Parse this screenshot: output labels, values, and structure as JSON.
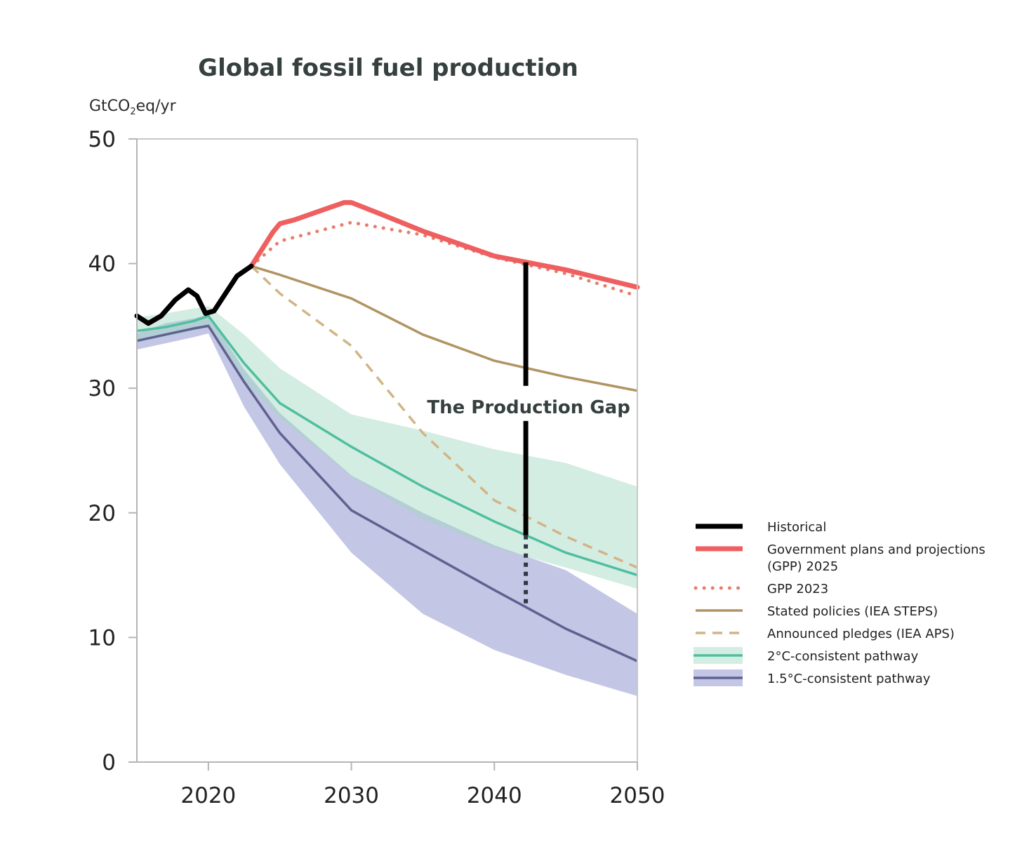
{
  "chart_data": {
    "type": "line",
    "title": "Global fossil fuel production",
    "ylabel_main": "GtCO",
    "ylabel_sub": "2",
    "ylabel_tail": "eq/yr",
    "xlim": [
      2015,
      2050
    ],
    "ylim": [
      0,
      50
    ],
    "x_ticks": [
      2020,
      2030,
      2040,
      2050
    ],
    "y_ticks": [
      0,
      10,
      20,
      30,
      40,
      50
    ],
    "series": [
      {
        "key": "historical",
        "name": "Historical",
        "color": "#000000",
        "style": "solid-thick",
        "points": [
          [
            2015,
            35.8
          ],
          [
            2015.8,
            35.2
          ],
          [
            2016.7,
            35.8
          ],
          [
            2017.7,
            37.1
          ],
          [
            2018.6,
            37.9
          ],
          [
            2019.2,
            37.4
          ],
          [
            2019.8,
            36.0
          ],
          [
            2020.4,
            36.2
          ],
          [
            2021.2,
            37.6
          ],
          [
            2022.0,
            39.0
          ],
          [
            2023.0,
            39.8
          ]
        ]
      },
      {
        "key": "gpp2025",
        "name_lines": [
          "Government plans and projections",
          "(GPP) 2025"
        ],
        "color": "#ef5f5f",
        "style": "solid-thick",
        "points": [
          [
            2023,
            39.8
          ],
          [
            2024.5,
            42.5
          ],
          [
            2025,
            43.2
          ],
          [
            2026,
            43.5
          ],
          [
            2028,
            44.3
          ],
          [
            2029.5,
            44.9
          ],
          [
            2030,
            44.9
          ],
          [
            2032,
            44.0
          ],
          [
            2035,
            42.6
          ],
          [
            2040,
            40.6
          ],
          [
            2045,
            39.5
          ],
          [
            2050,
            38.1
          ]
        ]
      },
      {
        "key": "gpp2023",
        "name": "GPP 2023",
        "color": "#e57f6c",
        "style": "dotted",
        "points": [
          [
            2023,
            39.8
          ],
          [
            2025,
            41.8
          ],
          [
            2030,
            43.3
          ],
          [
            2035,
            42.3
          ],
          [
            2040,
            40.5
          ],
          [
            2045,
            39.2
          ],
          [
            2050,
            37.4
          ]
        ]
      },
      {
        "key": "steps",
        "name": "Stated policies (IEA STEPS)",
        "color": "#b09461",
        "style": "solid",
        "points": [
          [
            2023,
            39.8
          ],
          [
            2025,
            39.1
          ],
          [
            2030,
            37.2
          ],
          [
            2035,
            34.3
          ],
          [
            2040,
            32.2
          ],
          [
            2045,
            30.9
          ],
          [
            2050,
            29.8
          ]
        ]
      },
      {
        "key": "aps",
        "name": "Announced pledges (IEA APS)",
        "color": "#d2b486",
        "style": "dashed",
        "points": [
          [
            2023,
            39.8
          ],
          [
            2025,
            37.6
          ],
          [
            2030,
            33.4
          ],
          [
            2035,
            26.4
          ],
          [
            2040,
            21.0
          ],
          [
            2045,
            18.1
          ],
          [
            2050,
            15.6
          ]
        ]
      },
      {
        "key": "c2",
        "name": "2°C-consistent pathway",
        "color": "#4fbf9f",
        "band_color": "#9fd8c2",
        "style": "solid",
        "points": [
          [
            2015,
            34.6
          ],
          [
            2017,
            34.9
          ],
          [
            2019,
            35.4
          ],
          [
            2020,
            35.8
          ],
          [
            2022.5,
            32.0
          ],
          [
            2025,
            28.8
          ],
          [
            2030,
            25.3
          ],
          [
            2035,
            22.1
          ],
          [
            2040,
            19.3
          ],
          [
            2045,
            16.8
          ],
          [
            2050,
            15.0
          ]
        ],
        "upper": [
          [
            2015,
            35.7
          ],
          [
            2017,
            36.0
          ],
          [
            2019,
            36.4
          ],
          [
            2020,
            36.6
          ],
          [
            2022.5,
            34.3
          ],
          [
            2025,
            31.6
          ],
          [
            2030,
            27.9
          ],
          [
            2035,
            26.6
          ],
          [
            2040,
            25.1
          ],
          [
            2045,
            24.0
          ],
          [
            2050,
            22.1
          ]
        ],
        "lower": [
          [
            2015,
            33.8
          ],
          [
            2017,
            34.1
          ],
          [
            2019,
            34.6
          ],
          [
            2020,
            34.9
          ],
          [
            2022.5,
            30.5
          ],
          [
            2025,
            27.6
          ],
          [
            2030,
            22.9
          ],
          [
            2035,
            19.5
          ],
          [
            2040,
            17.2
          ],
          [
            2045,
            15.6
          ],
          [
            2050,
            13.9
          ]
        ]
      },
      {
        "key": "c15",
        "name": "1.5°C-consistent pathway",
        "color": "#5f6290",
        "band_color": "#9fa3d6",
        "style": "solid",
        "points": [
          [
            2015,
            33.8
          ],
          [
            2017,
            34.3
          ],
          [
            2019,
            34.8
          ],
          [
            2020,
            35.0
          ],
          [
            2022.5,
            30.5
          ],
          [
            2025,
            26.4
          ],
          [
            2030,
            20.2
          ],
          [
            2035,
            17.0
          ],
          [
            2040,
            13.8
          ],
          [
            2045,
            10.7
          ],
          [
            2050,
            8.1
          ]
        ],
        "upper": [
          [
            2015,
            34.4
          ],
          [
            2017,
            35.2
          ],
          [
            2019,
            35.6
          ],
          [
            2020,
            35.9
          ],
          [
            2022.5,
            31.5
          ],
          [
            2025,
            28.0
          ],
          [
            2030,
            23.0
          ],
          [
            2035,
            20.0
          ],
          [
            2040,
            17.4
          ],
          [
            2045,
            15.4
          ],
          [
            2050,
            11.9
          ]
        ],
        "lower": [
          [
            2015,
            33.1
          ],
          [
            2017,
            33.6
          ],
          [
            2019,
            34.1
          ],
          [
            2020,
            34.4
          ],
          [
            2022.5,
            28.5
          ],
          [
            2025,
            23.9
          ],
          [
            2030,
            16.8
          ],
          [
            2035,
            11.9
          ],
          [
            2040,
            9.0
          ],
          [
            2045,
            7.0
          ],
          [
            2050,
            5.3
          ]
        ]
      }
    ],
    "annotation": {
      "text": "The Production Gap",
      "x": 2042.2,
      "top_value": 40.1,
      "solid_bottom_value": 18.2,
      "dotted_bottom_value": 12.4,
      "label_value": 28.5
    },
    "legend_order": [
      "historical",
      "gpp2025",
      "gpp2023",
      "steps",
      "aps",
      "c2",
      "c15"
    ]
  }
}
